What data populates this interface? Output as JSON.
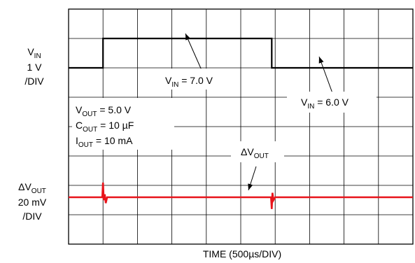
{
  "chart_data": {
    "type": "line",
    "xlabel": "TIME (500µs/DIV)",
    "x_unit": "µs",
    "x_per_div": 500,
    "x_divisions": 10,
    "y_divisions": 8,
    "grid": true,
    "channel_vin": {
      "label": {
        "main": "V",
        "sub": "IN"
      },
      "scale_text": "1 V",
      "div_text": "/DIV",
      "volts_per_div": 1,
      "color": "#000000",
      "points": [
        [
          0,
          6.0
        ],
        [
          500,
          6.0
        ],
        [
          500,
          7.0
        ],
        [
          2950,
          7.0
        ],
        [
          2950,
          6.0
        ],
        [
          5000,
          6.0
        ]
      ]
    },
    "channel_dvout": {
      "label": {
        "main": "ΔV",
        "sub": "OUT"
      },
      "scale_text": "20 mV",
      "div_text": "/DIV",
      "mv_per_div": 20,
      "color": "#e8141b",
      "points": [
        [
          0,
          0
        ],
        [
          490,
          0
        ],
        [
          500,
          10
        ],
        [
          510,
          -2
        ],
        [
          525,
          2
        ],
        [
          540,
          -4
        ],
        [
          560,
          0
        ],
        [
          2940,
          0
        ],
        [
          2950,
          -8
        ],
        [
          2960,
          3
        ],
        [
          2975,
          -2
        ],
        [
          3000,
          0
        ],
        [
          5000,
          0
        ]
      ]
    },
    "annotations": {
      "vin_high": {
        "main": "V",
        "sub": "IN",
        "text": " = 7.0 V"
      },
      "vin_low": {
        "main": "V",
        "sub": "IN",
        "text": " = 6.0 V"
      },
      "dvout": {
        "main": "ΔV",
        "sub": "OUT"
      },
      "conditions": [
        {
          "main": "V",
          "sub": "OUT",
          "text": " = 5.0 V"
        },
        {
          "main": "C",
          "sub": "OUT",
          "text": " = 10 µF"
        },
        {
          "main": "I",
          "sub": "OUT",
          "text": " = 10 mA"
        }
      ]
    }
  }
}
